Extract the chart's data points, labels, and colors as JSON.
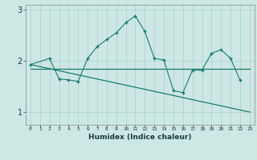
{
  "xlabel": "Humidex (Indice chaleur)",
  "x_values": [
    0,
    1,
    2,
    3,
    4,
    5,
    6,
    7,
    8,
    9,
    10,
    11,
    12,
    13,
    14,
    15,
    16,
    17,
    18,
    19,
    20,
    21,
    22,
    23
  ],
  "line1_x": [
    0,
    2,
    3,
    4,
    5,
    6,
    7,
    8,
    9,
    10,
    11,
    12,
    13,
    14,
    15,
    16,
    17,
    18,
    19,
    20,
    21,
    22
  ],
  "line1_y": [
    1.93,
    2.05,
    1.65,
    1.63,
    1.6,
    2.05,
    2.28,
    2.42,
    2.55,
    2.75,
    2.88,
    2.58,
    2.05,
    2.02,
    1.42,
    1.38,
    1.82,
    1.82,
    2.15,
    2.22,
    2.05,
    1.62
  ],
  "line2_x": [
    0,
    23
  ],
  "line2_y": [
    1.84,
    1.84
  ],
  "line3_x": [
    0,
    23
  ],
  "line3_y": [
    1.93,
    1.0
  ],
  "color": "#1a7a6e",
  "bg_color": "#cde8e4",
  "grid_color": "#aacfca",
  "ylim": [
    0.75,
    3.1
  ],
  "yticks": [
    1,
    2,
    3
  ],
  "xlim": [
    -0.5,
    23.5
  ]
}
